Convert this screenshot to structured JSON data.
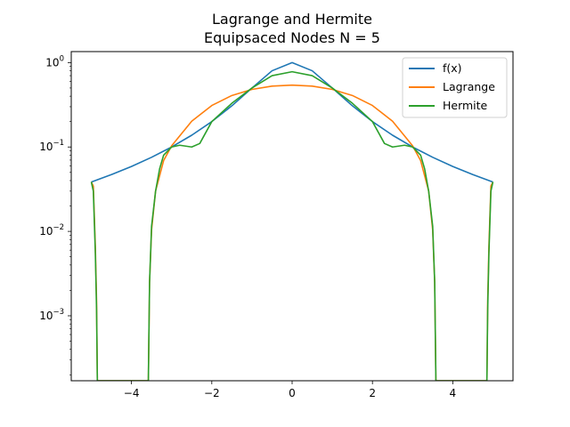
{
  "chart_data": {
    "type": "line",
    "title": "Lagrange and Hermite",
    "subtitle": "Equipsaced Nodes N = 5",
    "xlabel": "",
    "ylabel": "",
    "xlim": [
      -5.5,
      5.5
    ],
    "ylim": [
      0.00017,
      1.35
    ],
    "yscale": "log",
    "grid": false,
    "legend_position": "top-right",
    "x_ticks": [
      -4,
      -2,
      0,
      2,
      4
    ],
    "x_tick_labels": [
      "−4",
      "−2",
      "0",
      "2",
      "4"
    ],
    "y_ticks": [
      0.001,
      0.01,
      0.1,
      1
    ],
    "y_tick_labels": [
      "10",
      "10",
      "10",
      "10"
    ],
    "y_tick_exponents": [
      "−3",
      "−2",
      "−1",
      "0"
    ],
    "series": [
      {
        "name": "f(x)",
        "color": "#1f77b4",
        "x": [
          -5.0,
          -4.5,
          -4.0,
          -3.5,
          -3.0,
          -2.5,
          -2.0,
          -1.5,
          -1.0,
          -0.5,
          0.0,
          0.5,
          1.0,
          1.5,
          2.0,
          2.5,
          3.0,
          3.5,
          4.0,
          4.5,
          5.0
        ],
        "y": [
          0.0385,
          0.0471,
          0.0588,
          0.0755,
          0.1,
          0.1379,
          0.2,
          0.3077,
          0.5,
          0.8,
          1.0,
          0.8,
          0.5,
          0.3077,
          0.2,
          0.1379,
          0.1,
          0.0755,
          0.0588,
          0.0471,
          0.0385
        ]
      },
      {
        "name": "Lagrange",
        "color": "#ff7f0e",
        "x": [
          -5.0,
          -4.95,
          -4.9,
          -4.87,
          -4.85,
          -3.58,
          -3.55,
          -3.5,
          -3.4,
          -3.2,
          -3.0,
          -2.5,
          -2.0,
          -1.5,
          -1.0,
          -0.5,
          0.0,
          0.5,
          1.0,
          1.5,
          2.0,
          2.5,
          3.0,
          3.2,
          3.4,
          3.5,
          3.55,
          3.58,
          4.85,
          4.87,
          4.9,
          4.95,
          5.0
        ],
        "y": [
          0.0385,
          0.0345,
          0.0066,
          0.0015,
          0.00017,
          0.00017,
          0.0025,
          0.0104,
          0.0301,
          0.069,
          0.1035,
          0.2022,
          0.3103,
          0.4077,
          0.4811,
          0.5262,
          0.5415,
          0.5262,
          0.4811,
          0.4077,
          0.3103,
          0.2022,
          0.1035,
          0.069,
          0.0301,
          0.0104,
          0.0025,
          0.00017,
          0.00017,
          0.0015,
          0.0066,
          0.0345,
          0.0385
        ]
      },
      {
        "name": "Hermite",
        "color": "#2ca02c",
        "x": [
          -5.0,
          -4.95,
          -4.9,
          -4.87,
          -4.85,
          -3.58,
          -3.55,
          -3.5,
          -3.4,
          -3.3,
          -3.2,
          -3.0,
          -2.8,
          -2.5,
          -2.3,
          -2.0,
          -1.5,
          -1.0,
          -0.5,
          0.0,
          0.5,
          1.0,
          1.5,
          2.0,
          2.3,
          2.5,
          2.8,
          3.0,
          3.2,
          3.3,
          3.4,
          3.5,
          3.55,
          3.58,
          4.85,
          4.87,
          4.9,
          4.95,
          5.0
        ],
        "y": [
          0.0385,
          0.03,
          0.0055,
          0.0012,
          0.00017,
          0.00017,
          0.0025,
          0.0115,
          0.03,
          0.055,
          0.08,
          0.1,
          0.105,
          0.1,
          0.11,
          0.2,
          0.33,
          0.5,
          0.7,
          0.78,
          0.7,
          0.5,
          0.33,
          0.2,
          0.11,
          0.1,
          0.105,
          0.1,
          0.08,
          0.055,
          0.03,
          0.0115,
          0.0025,
          0.00017,
          0.00017,
          0.0012,
          0.0055,
          0.03,
          0.0385
        ]
      }
    ]
  }
}
